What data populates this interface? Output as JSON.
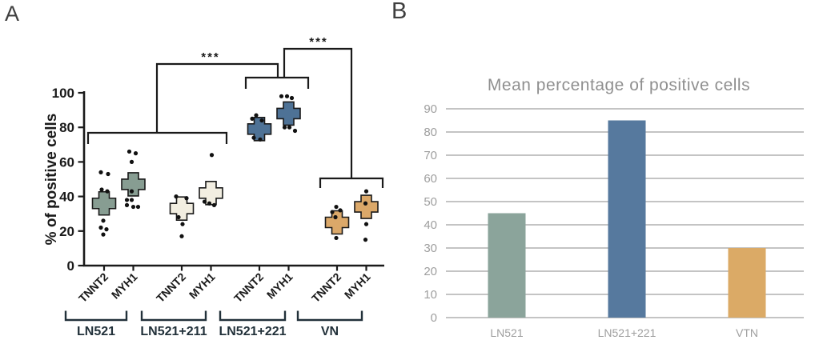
{
  "panels": {
    "a_label": "A",
    "b_label": "B"
  },
  "colors": {
    "axis_text": "#1a1a1a",
    "bracket": "#1a1a1a",
    "group_label": "#22313a",
    "dot": "#111111",
    "bar_grid": "#c4c4c4",
    "bar_text": "#9e9e9e",
    "bar_title": "#8f8f8f"
  },
  "chart_data": [
    {
      "type": "scatter",
      "panel": "A",
      "title": "",
      "ylabel": "% of positive cells",
      "ylim": [
        0,
        100
      ],
      "yticks": [
        0,
        20,
        40,
        60,
        80,
        100
      ],
      "markers": [
        "TNNT2",
        "MYH1"
      ],
      "groups": [
        {
          "label": "LN521",
          "color": "#879d92",
          "series": [
            {
              "marker": "TNNT2",
              "mean": 36,
              "points": [
                [
                  54,
                  -4
                ],
                [
                  53,
                  5
                ],
                [
                  44,
                  -3
                ],
                [
                  43,
                  4
                ],
                [
                  26,
                  -1
                ],
                [
                  22,
                  -4
                ],
                [
                  21,
                  3
                ],
                [
                  18,
                  -1
                ]
              ]
            },
            {
              "marker": "MYH1",
              "mean": 47,
              "points": [
                [
                  66,
                  -5
                ],
                [
                  65,
                  3
                ],
                [
                  60,
                  -2
                ],
                [
                  43,
                  -2
                ],
                [
                  38,
                  -8
                ],
                [
                  38,
                  -2
                ],
                [
                  35,
                  -8
                ],
                [
                  34,
                  0
                ],
                [
                  34,
                  6
                ]
              ]
            }
          ]
        },
        {
          "label": "LN521+211",
          "color": "#f2eee1",
          "series": [
            {
              "marker": "TNNT2",
              "mean": 33,
              "points": [
                [
                  40,
                  -7
                ],
                [
                  39,
                  6
                ],
                [
                  28,
                  -4
                ],
                [
                  24,
                  1
                ],
                [
                  17,
                  0
                ]
              ]
            },
            {
              "marker": "MYH1",
              "mean": 42,
              "points": [
                [
                  64,
                  1
                ],
                [
                  37,
                  -8
                ],
                [
                  36,
                  -2
                ],
                [
                  35,
                  4
                ]
              ]
            }
          ]
        },
        {
          "label": "LN521+221",
          "color": "#4e7296",
          "series": [
            {
              "marker": "TNNT2",
              "mean": 79,
              "points": [
                [
                  87,
                  -4
                ],
                [
                  85,
                  -9
                ],
                [
                  84,
                  3
                ],
                [
                  74,
                  -7
                ],
                [
                  73,
                  1
                ]
              ]
            },
            {
              "marker": "MYH1",
              "mean": 88,
              "points": [
                [
                  98,
                  -9
                ],
                [
                  98,
                  -2
                ],
                [
                  97,
                  4
                ],
                [
                  80,
                  -5
                ],
                [
                  80,
                  1
                ],
                [
                  78,
                  8
                ]
              ]
            }
          ]
        },
        {
          "label": "VN",
          "color": "#dba869",
          "series": [
            {
              "marker": "TNNT2",
              "mean": 25,
              "points": [
                [
                  34,
                  -1
                ],
                [
                  32,
                  4
                ],
                [
                  31,
                  -6
                ],
                [
                  28,
                  -2
                ],
                [
                  16,
                  -1
                ]
              ]
            },
            {
              "marker": "MYH1",
              "mean": 34,
              "points": [
                [
                  43,
                  0
                ],
                [
                  36,
                  -1
                ],
                [
                  24,
                  0
                ],
                [
                  15,
                  -1
                ]
              ]
            }
          ]
        }
      ],
      "significance": [
        {
          "label": "***",
          "between": [
            "LN521 & LN521+211",
            "LN521+221"
          ]
        },
        {
          "label": "***",
          "between": [
            "LN521+221",
            "VN"
          ]
        }
      ]
    },
    {
      "type": "bar",
      "panel": "B",
      "title": "Mean percentage of positive cells",
      "categories": [
        "LN521",
        "LN521+221",
        "VTN"
      ],
      "values": [
        45,
        85,
        30
      ],
      "bar_colors": [
        "#8ba49b",
        "#56799e",
        "#dbaa66"
      ],
      "xlabel": "",
      "ylabel": "",
      "ylim": [
        0,
        90
      ],
      "yticks": [
        0,
        10,
        20,
        30,
        40,
        50,
        60,
        70,
        80,
        90
      ],
      "grid": true,
      "legend_position": "none"
    }
  ]
}
